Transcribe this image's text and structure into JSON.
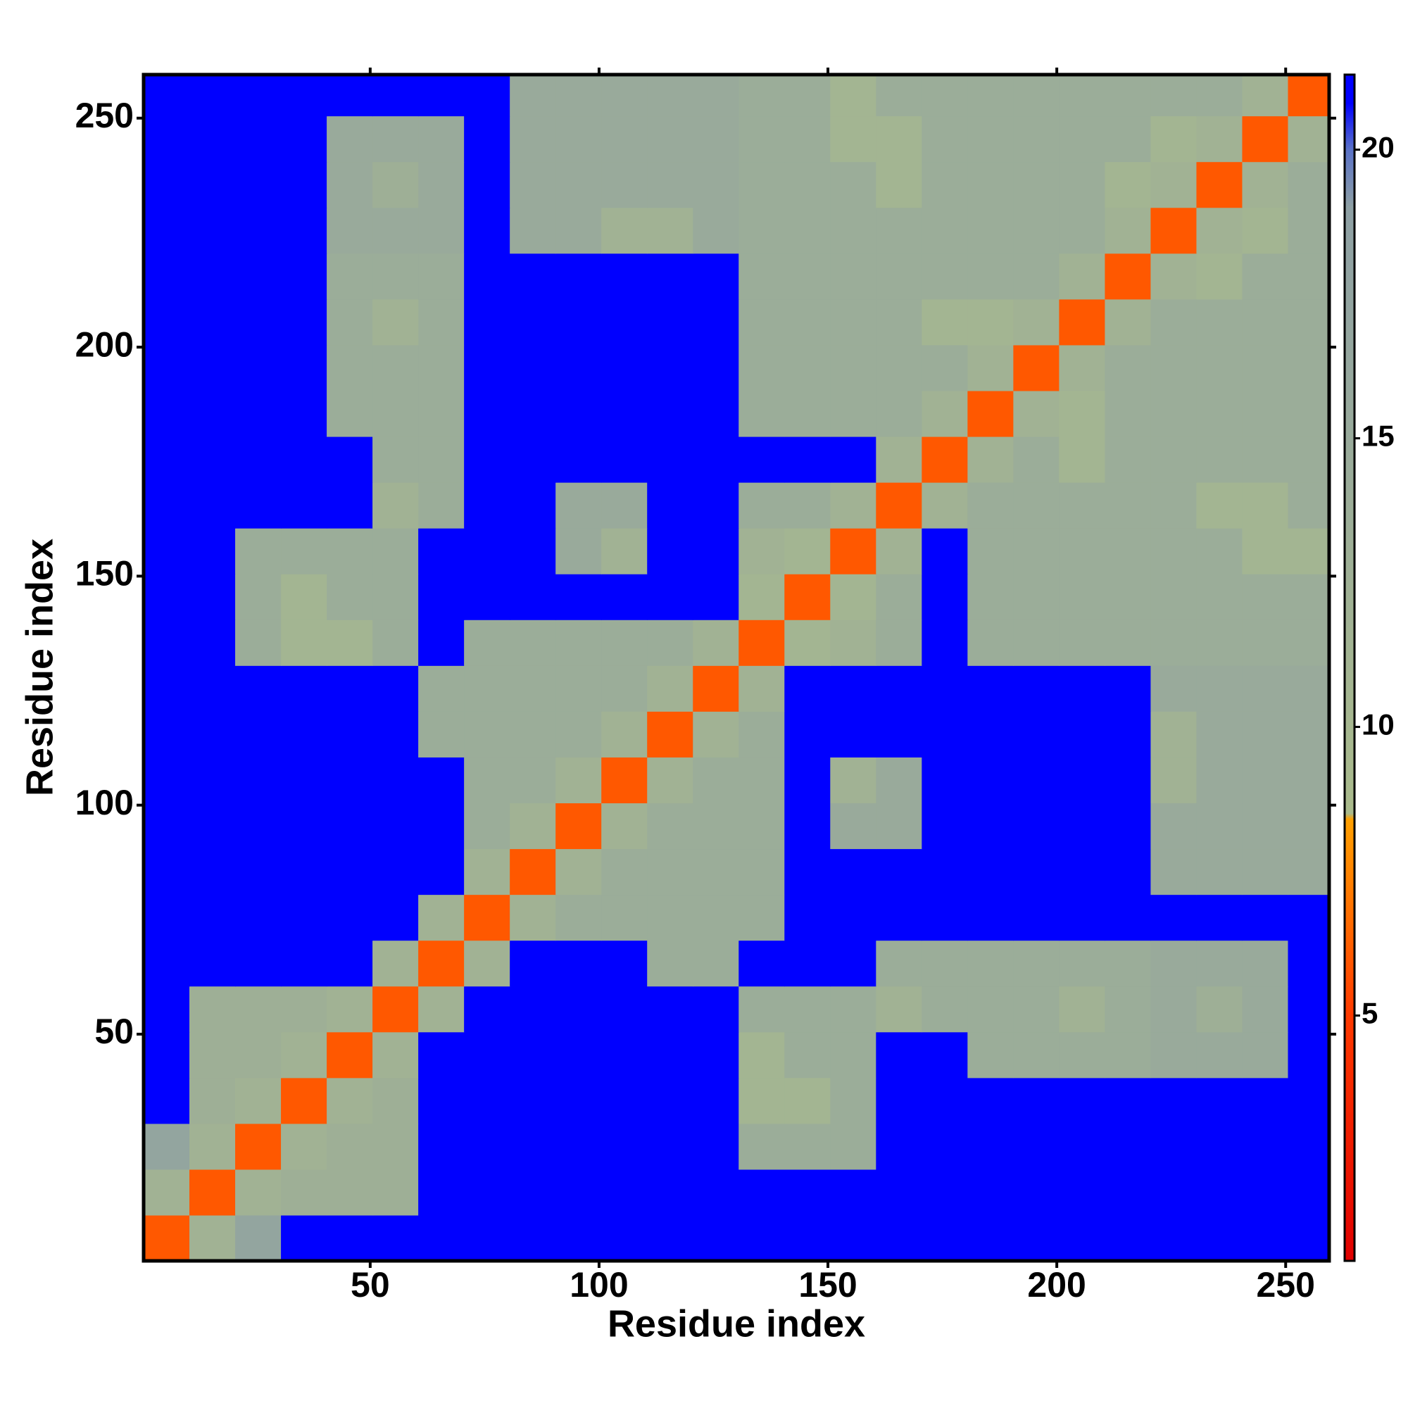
{
  "chart_data": {
    "type": "heatmap",
    "x_label": "Residue index",
    "y_label": "Residue index",
    "xbins": [
      0.5,
      10.5,
      20.5,
      30.5,
      40.5,
      50.5,
      60.5,
      70.5,
      80.5,
      90.5,
      100.5,
      110.5,
      120.5,
      130.5,
      140.5,
      150.5,
      160.5,
      170.5,
      180.5,
      190.5,
      200.5,
      210.5,
      220.5,
      230.5,
      240.5,
      250.5,
      259.5
    ],
    "ybins": [
      0.5,
      10.5,
      20.5,
      30.5,
      40.5,
      50.5,
      60.5,
      70.5,
      80.5,
      90.5,
      100.5,
      110.5,
      120.5,
      130.5,
      140.5,
      150.5,
      160.5,
      170.5,
      180.5,
      190.5,
      200.5,
      210.5,
      220.5,
      230.5,
      240.5,
      250.5,
      259.5
    ],
    "xlim": [
      0.5,
      259.5
    ],
    "ylim": [
      0.5,
      259.5
    ],
    "xticks": [
      50,
      100,
      150,
      200,
      250
    ],
    "yticks": [
      50,
      100,
      150,
      200,
      250
    ],
    "values": [
      [
        6,
        12,
        17,
        21,
        21,
        21,
        21,
        21,
        21,
        21,
        21,
        21,
        21,
        21,
        21,
        21,
        21,
        21,
        21,
        21,
        21,
        21,
        21,
        21,
        21,
        21
      ],
      [
        12,
        6,
        12,
        13,
        13,
        13,
        21,
        21,
        21,
        21,
        21,
        21,
        21,
        21,
        21,
        21,
        21,
        21,
        21,
        21,
        21,
        21,
        21,
        21,
        21,
        21
      ],
      [
        17,
        12,
        6,
        12,
        13,
        13,
        21,
        21,
        21,
        21,
        21,
        21,
        21,
        14,
        14,
        14,
        21,
        21,
        21,
        21,
        21,
        21,
        21,
        21,
        21,
        21
      ],
      [
        21,
        13,
        12,
        6,
        12,
        13,
        21,
        21,
        21,
        21,
        21,
        21,
        21,
        11,
        11,
        14,
        21,
        21,
        21,
        21,
        21,
        21,
        21,
        21,
        21,
        21
      ],
      [
        21,
        13,
        13,
        12,
        6,
        12,
        21,
        21,
        21,
        21,
        21,
        21,
        21,
        11,
        14,
        14,
        21,
        21,
        14,
        14,
        14,
        14,
        15,
        15,
        15,
        21
      ],
      [
        21,
        13,
        13,
        13,
        12,
        6,
        12,
        21,
        21,
        21,
        21,
        21,
        21,
        14,
        14,
        14,
        12,
        14,
        14,
        14,
        12,
        14,
        15,
        13,
        15,
        21
      ],
      [
        21,
        21,
        21,
        21,
        21,
        12,
        6,
        12,
        21,
        21,
        21,
        14,
        14,
        21,
        21,
        21,
        14,
        14,
        14,
        14,
        14,
        14,
        15,
        15,
        15,
        21
      ],
      [
        21,
        21,
        21,
        21,
        21,
        21,
        12,
        6,
        12,
        14,
        14,
        14,
        14,
        14,
        21,
        21,
        21,
        21,
        21,
        21,
        21,
        21,
        21,
        21,
        21,
        21
      ],
      [
        21,
        21,
        21,
        21,
        21,
        21,
        21,
        12,
        6,
        12,
        14,
        14,
        14,
        14,
        21,
        21,
        21,
        21,
        21,
        21,
        21,
        21,
        15,
        15,
        15,
        15
      ],
      [
        21,
        21,
        21,
        21,
        21,
        21,
        21,
        14,
        12,
        6,
        12,
        14,
        14,
        14,
        21,
        15,
        15,
        21,
        21,
        21,
        21,
        21,
        15,
        15,
        15,
        15
      ],
      [
        21,
        21,
        21,
        21,
        21,
        21,
        21,
        14,
        14,
        12,
        6,
        12,
        14,
        14,
        21,
        12,
        15,
        21,
        21,
        21,
        21,
        21,
        12,
        15,
        15,
        15
      ],
      [
        21,
        21,
        21,
        21,
        21,
        21,
        14,
        14,
        14,
        14,
        12,
        6,
        12,
        14,
        21,
        21,
        21,
        21,
        21,
        21,
        21,
        21,
        12,
        15,
        15,
        15
      ],
      [
        21,
        21,
        21,
        21,
        21,
        21,
        14,
        14,
        14,
        14,
        14,
        12,
        6,
        12,
        21,
        21,
        21,
        21,
        21,
        21,
        21,
        21,
        15,
        15,
        15,
        15
      ],
      [
        21,
        21,
        14,
        11,
        11,
        14,
        21,
        14,
        14,
        14,
        14,
        14,
        12,
        6,
        11,
        12,
        14,
        21,
        14,
        14,
        14,
        14,
        14,
        14,
        14,
        14
      ],
      [
        21,
        21,
        14,
        11,
        14,
        14,
        21,
        21,
        21,
        21,
        21,
        21,
        21,
        11,
        6,
        11,
        14,
        21,
        14,
        14,
        14,
        14,
        14,
        14,
        14,
        14
      ],
      [
        21,
        21,
        14,
        14,
        14,
        14,
        21,
        21,
        21,
        15,
        12,
        21,
        21,
        12,
        11,
        6,
        12,
        21,
        14,
        14,
        14,
        14,
        14,
        14,
        11,
        11
      ],
      [
        21,
        21,
        21,
        21,
        21,
        12,
        14,
        21,
        21,
        15,
        15,
        21,
        21,
        14,
        14,
        12,
        6,
        12,
        14,
        14,
        14,
        14,
        14,
        11,
        11,
        14
      ],
      [
        21,
        21,
        21,
        21,
        21,
        14,
        14,
        21,
        21,
        21,
        21,
        21,
        21,
        21,
        21,
        21,
        12,
        6,
        12,
        14,
        11,
        14,
        14,
        14,
        14,
        14
      ],
      [
        21,
        21,
        21,
        21,
        14,
        14,
        14,
        21,
        21,
        21,
        21,
        21,
        21,
        14,
        14,
        14,
        14,
        12,
        6,
        12,
        11,
        14,
        14,
        14,
        14,
        14
      ],
      [
        21,
        21,
        21,
        21,
        14,
        14,
        14,
        21,
        21,
        21,
        21,
        21,
        21,
        14,
        14,
        14,
        14,
        14,
        12,
        6,
        12,
        14,
        14,
        14,
        14,
        14
      ],
      [
        21,
        21,
        21,
        21,
        14,
        12,
        14,
        21,
        21,
        21,
        21,
        21,
        21,
        14,
        14,
        14,
        14,
        11,
        11,
        12,
        6,
        12,
        14,
        14,
        14,
        14
      ],
      [
        21,
        21,
        21,
        21,
        14,
        14,
        14,
        21,
        21,
        21,
        21,
        21,
        21,
        14,
        14,
        14,
        14,
        14,
        14,
        14,
        12,
        6,
        12,
        11,
        14,
        14
      ],
      [
        21,
        21,
        21,
        21,
        15,
        15,
        15,
        21,
        15,
        15,
        12,
        12,
        15,
        14,
        14,
        14,
        14,
        14,
        14,
        14,
        14,
        12,
        6,
        12,
        11,
        14
      ],
      [
        21,
        21,
        21,
        21,
        15,
        13,
        15,
        21,
        15,
        15,
        15,
        15,
        15,
        14,
        14,
        14,
        11,
        14,
        14,
        14,
        14,
        11,
        12,
        6,
        12,
        14
      ],
      [
        21,
        21,
        21,
        21,
        15,
        15,
        15,
        21,
        15,
        15,
        15,
        15,
        15,
        14,
        14,
        11,
        11,
        14,
        14,
        14,
        14,
        14,
        11,
        12,
        6,
        12
      ],
      [
        21,
        21,
        21,
        21,
        21,
        21,
        21,
        21,
        15,
        15,
        15,
        15,
        15,
        14,
        14,
        11,
        14,
        14,
        14,
        14,
        14,
        14,
        14,
        14,
        12,
        6
      ]
    ],
    "clim": [
      0.75,
      21.3
    ],
    "cticks": [
      5,
      10,
      15,
      20
    ],
    "colorscale": [
      {
        "value": 0.75,
        "color": "#e00000"
      },
      {
        "value": 5,
        "color": "#ff3a00"
      },
      {
        "value": 8.4,
        "color": "#ffa000"
      },
      {
        "value": 8.5,
        "color": "#aabb8c"
      },
      {
        "value": 19,
        "color": "#8ea0a4"
      },
      {
        "value": 20,
        "color": "#5a72c8"
      },
      {
        "value": 20.8,
        "color": "#0000ff"
      },
      {
        "value": 21.3,
        "color": "#0000ff"
      }
    ]
  }
}
